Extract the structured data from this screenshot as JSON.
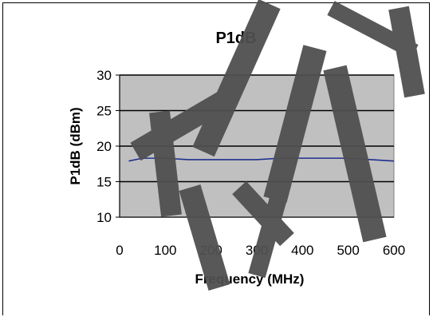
{
  "chart_data": {
    "type": "line",
    "title": "P1dB",
    "xlabel": "Frequency (MHz)",
    "ylabel": "P1dB (dBm)",
    "xlim": [
      0,
      600
    ],
    "ylim": [
      10,
      30
    ],
    "x_ticks": [
      "0",
      "100",
      "200",
      "300",
      "400",
      "500",
      "600"
    ],
    "y_ticks": [
      "10",
      "15",
      "20",
      "25",
      "30"
    ],
    "grid": "horizontal",
    "plot_background": "#C0C0C0",
    "series": [
      {
        "color": "#1F2F8F",
        "x": [
          20,
          50,
          100,
          150,
          200,
          250,
          300,
          350,
          400,
          450,
          500,
          550,
          600
        ],
        "y": [
          17.9,
          18.3,
          18.3,
          18.1,
          18.1,
          18.1,
          18.1,
          18.3,
          18.3,
          18.3,
          18.3,
          18.1,
          17.9
        ]
      }
    ],
    "watermark_color": "#505050"
  }
}
